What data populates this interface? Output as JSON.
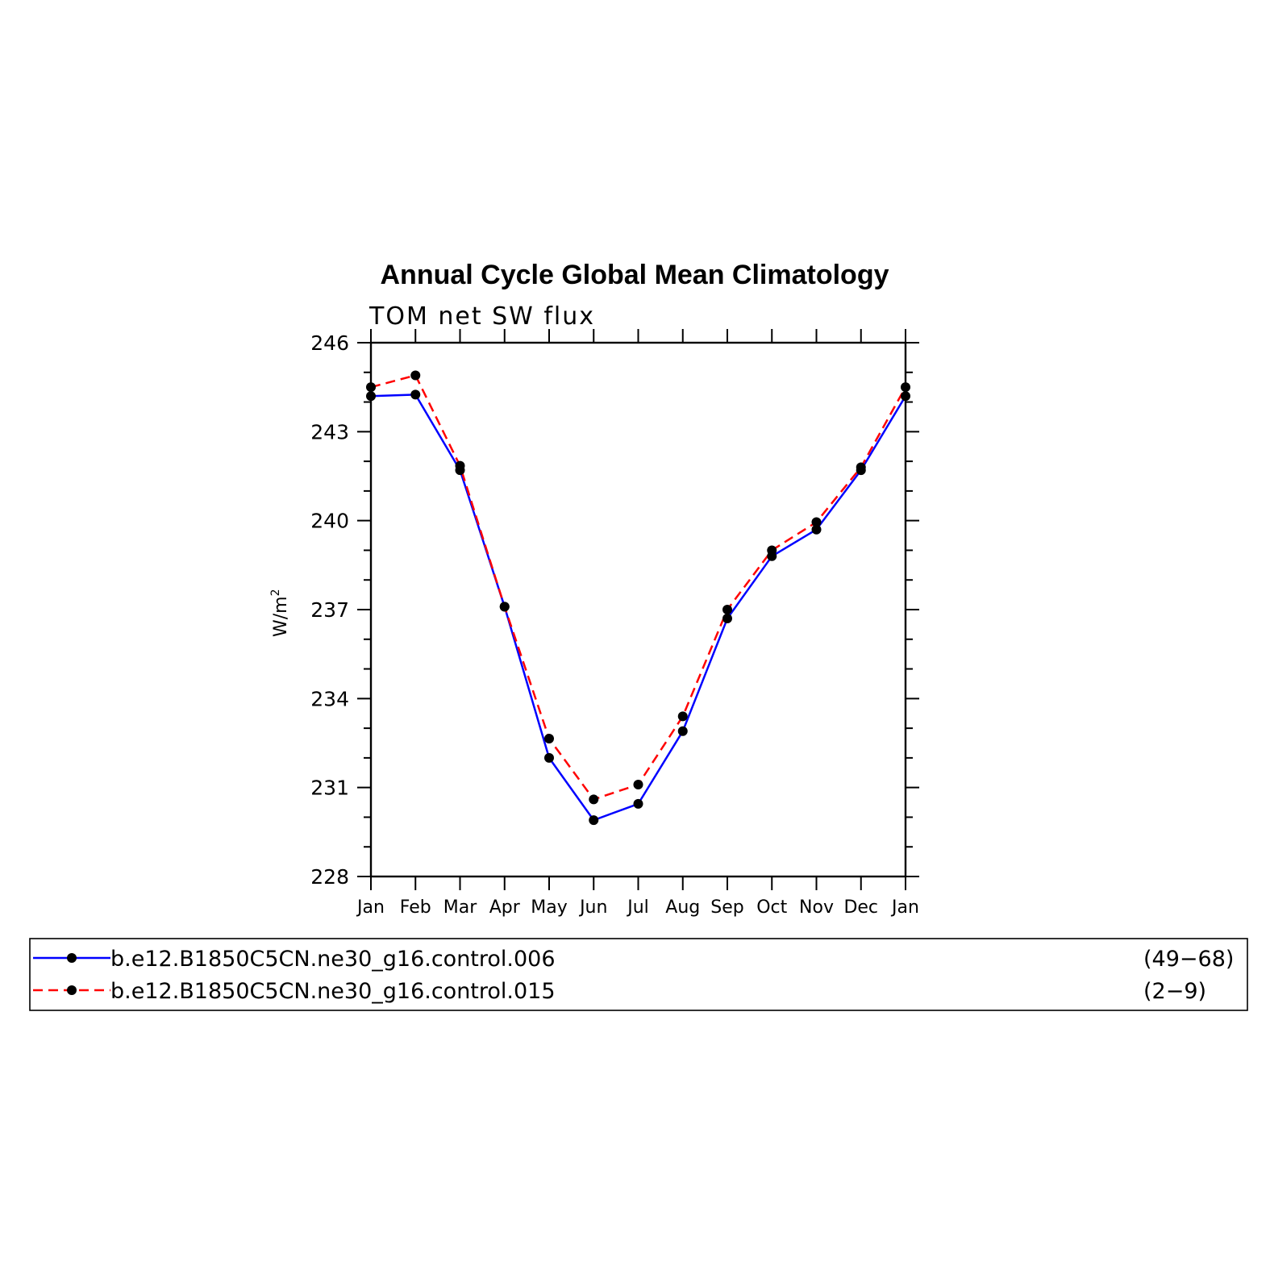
{
  "chart_data": {
    "type": "line",
    "title": "Annual Cycle Global Mean Climatology",
    "subtitle": "TOM  net  SW  flux",
    "ylabel_base": "W/m",
    "ylabel_sup": "2",
    "categories": [
      "Jan",
      "Feb",
      "Mar",
      "Apr",
      "May",
      "Jun",
      "Jul",
      "Aug",
      "Sep",
      "Oct",
      "Nov",
      "Dec",
      "Jan"
    ],
    "ylim": [
      228,
      246
    ],
    "yticks": [
      228,
      231,
      234,
      237,
      240,
      243,
      246
    ],
    "grid": false,
    "series": [
      {
        "name": "b.e12.B1850C5CN.ne30_g16.control.006",
        "years": "(49−68)",
        "color": "#0000ff",
        "dash": "solid",
        "values": [
          244.2,
          244.25,
          241.7,
          237.1,
          232.0,
          229.9,
          230.45,
          232.9,
          236.7,
          238.8,
          239.7,
          241.7,
          244.2
        ]
      },
      {
        "name": "b.e12.B1850C5CN.ne30_g16.control.015",
        "years": "(2−9)",
        "color": "#ff0000",
        "dash": "dashed",
        "values": [
          244.5,
          244.9,
          241.85,
          237.1,
          232.65,
          230.6,
          231.1,
          233.4,
          237.0,
          239.0,
          239.95,
          241.8,
          244.5
        ]
      }
    ],
    "legend_position": "bottom"
  }
}
